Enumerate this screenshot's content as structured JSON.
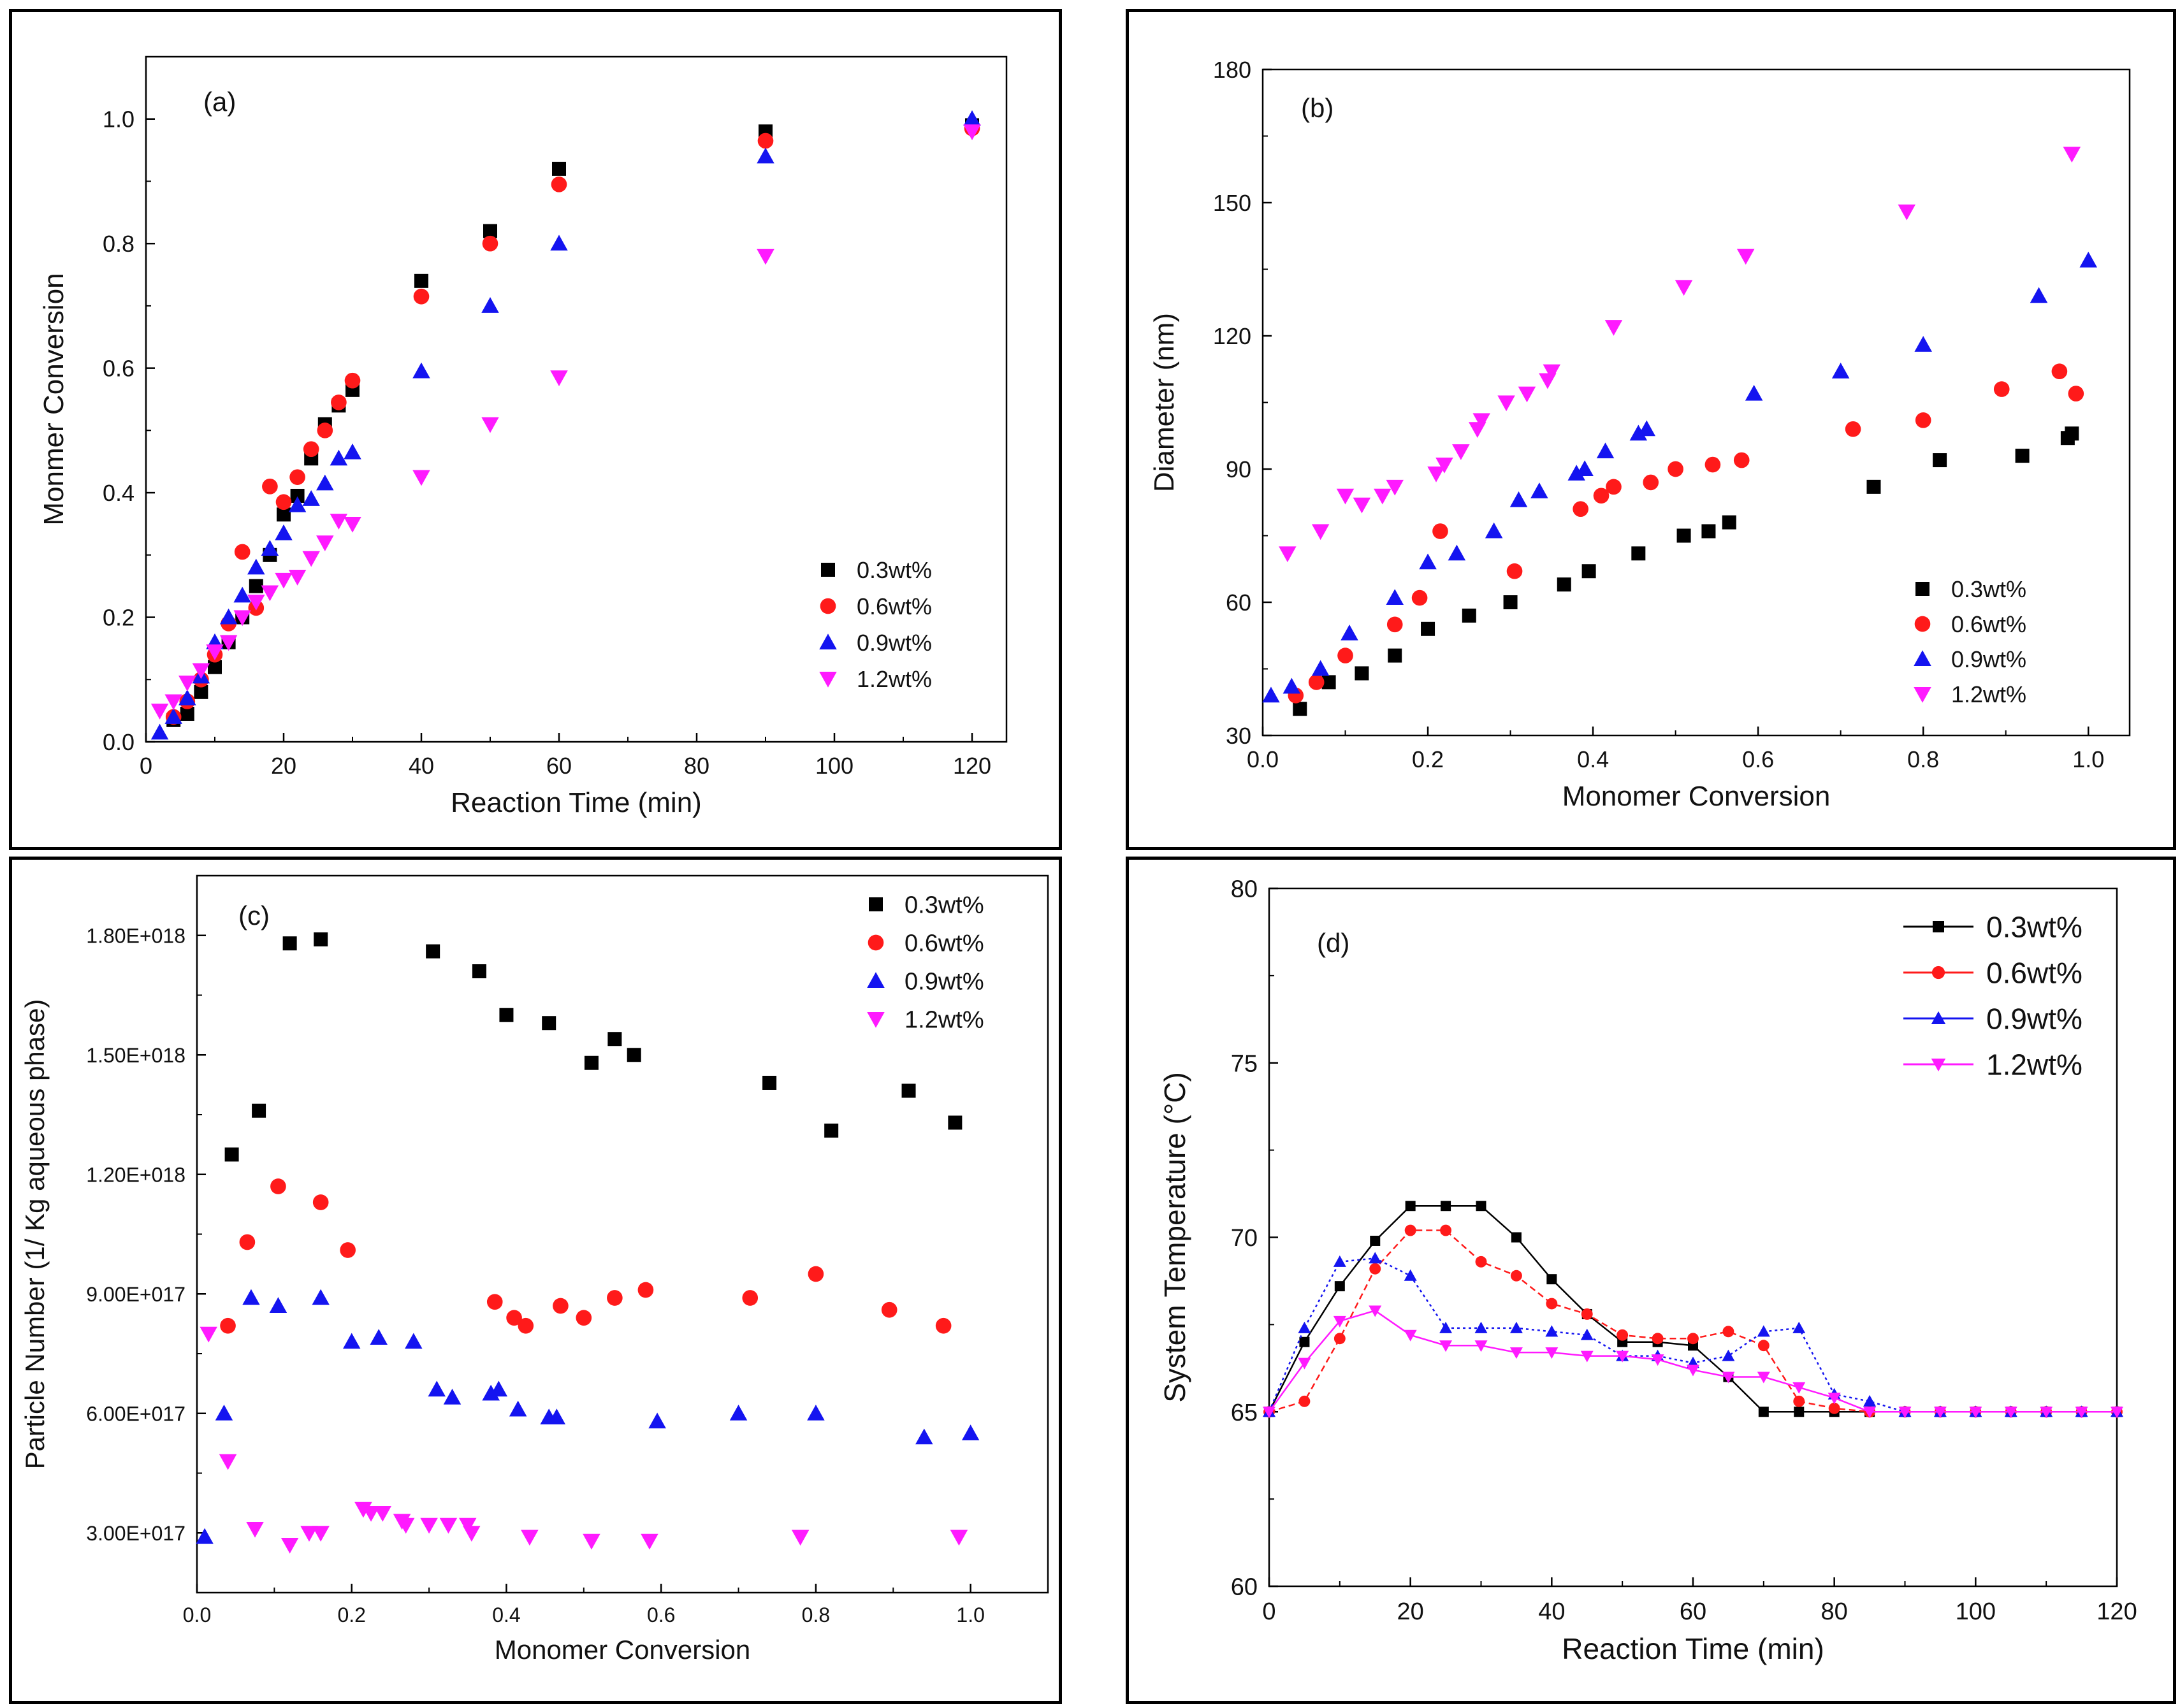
{
  "colors": {
    "s03": "#000000",
    "s06": "#ff1a1a",
    "s09": "#1414f0",
    "s12": "#ff1aff"
  },
  "chart_data": [
    {
      "id": "a",
      "type": "scatter",
      "panel_label": "(a)",
      "xlabel": "Reaction Time (min)",
      "ylabel": "Monmer Conversion",
      "xlim": [
        0,
        125
      ],
      "ylim": [
        0,
        1.1
      ],
      "xticks": [
        0,
        20,
        40,
        60,
        80,
        100,
        120
      ],
      "xtick_labels": [
        "0",
        "20",
        "40",
        "60",
        "80",
        "100",
        "120"
      ],
      "yticks": [
        0.0,
        0.2,
        0.4,
        0.6,
        0.8,
        1.0
      ],
      "ytick_labels": [
        "0.0",
        "0.2",
        "0.4",
        "0.6",
        "0.8",
        "1.0"
      ],
      "legend_position": "bottom-right",
      "series": [
        {
          "name": "0.3wt%",
          "marker": "square",
          "color_key": "s03",
          "x": [
            4,
            6,
            8,
            10,
            12,
            14,
            16,
            18,
            20,
            22,
            24,
            26,
            28,
            30,
            40,
            50,
            60,
            90,
            120
          ],
          "y": [
            0.035,
            0.045,
            0.08,
            0.12,
            0.16,
            0.2,
            0.25,
            0.3,
            0.365,
            0.395,
            0.455,
            0.51,
            0.54,
            0.565,
            0.74,
            0.82,
            0.92,
            0.98,
            0.99
          ]
        },
        {
          "name": "0.6wt%",
          "marker": "circle",
          "color_key": "s06",
          "x": [
            4,
            6,
            8,
            10,
            12,
            14,
            16,
            18,
            20,
            22,
            24,
            26,
            28,
            30,
            40,
            50,
            60,
            90,
            120
          ],
          "y": [
            0.04,
            0.065,
            0.1,
            0.14,
            0.19,
            0.305,
            0.215,
            0.41,
            0.385,
            0.425,
            0.47,
            0.5,
            0.545,
            0.58,
            0.715,
            0.8,
            0.895,
            0.965,
            0.985
          ]
        },
        {
          "name": "0.9wt%",
          "marker": "triangle-up",
          "color_key": "s09",
          "x": [
            2,
            4,
            6,
            8,
            10,
            12,
            14,
            16,
            18,
            20,
            22,
            24,
            26,
            28,
            30,
            40,
            50,
            60,
            90,
            120
          ],
          "y": [
            0.015,
            0.04,
            0.07,
            0.105,
            0.16,
            0.2,
            0.235,
            0.28,
            0.31,
            0.335,
            0.38,
            0.39,
            0.415,
            0.455,
            0.465,
            0.595,
            0.7,
            0.8,
            0.94,
            1.0
          ]
        },
        {
          "name": "1.2wt%",
          "marker": "triangle-down",
          "color_key": "s12",
          "x": [
            2,
            4,
            6,
            8,
            10,
            12,
            14,
            16,
            18,
            20,
            22,
            24,
            26,
            28,
            30,
            40,
            50,
            60,
            90,
            120
          ],
          "y": [
            0.05,
            0.065,
            0.095,
            0.115,
            0.145,
            0.16,
            0.2,
            0.225,
            0.24,
            0.26,
            0.265,
            0.295,
            0.32,
            0.355,
            0.35,
            0.425,
            0.51,
            0.585,
            0.78,
            0.98
          ]
        }
      ]
    },
    {
      "id": "b",
      "type": "scatter",
      "panel_label": "(b)",
      "xlabel": "Monomer Conversion",
      "ylabel": "Diameter (nm)",
      "xlim": [
        0,
        1.05
      ],
      "ylim": [
        30,
        180
      ],
      "xticks": [
        0.0,
        0.2,
        0.4,
        0.6,
        0.8,
        1.0
      ],
      "xtick_labels": [
        "0.0",
        "0.2",
        "0.4",
        "0.6",
        "0.8",
        "1.0"
      ],
      "yticks": [
        30,
        60,
        90,
        120,
        150,
        180
      ],
      "ytick_labels": [
        "30",
        "60",
        "90",
        "120",
        "150",
        "180"
      ],
      "legend_position": "bottom-right",
      "series": [
        {
          "name": "0.3wt%",
          "marker": "square",
          "color_key": "s03",
          "x": [
            0.045,
            0.08,
            0.12,
            0.16,
            0.2,
            0.25,
            0.3,
            0.365,
            0.395,
            0.455,
            0.51,
            0.54,
            0.565,
            0.74,
            0.82,
            0.92,
            0.975,
            0.98
          ],
          "y": [
            36,
            42,
            44,
            48,
            54,
            57,
            60,
            64,
            67,
            71,
            75,
            76,
            78,
            86,
            92,
            93,
            97,
            98
          ]
        },
        {
          "name": "0.6wt%",
          "marker": "circle",
          "color_key": "s06",
          "x": [
            0.04,
            0.065,
            0.1,
            0.16,
            0.19,
            0.215,
            0.305,
            0.385,
            0.41,
            0.425,
            0.47,
            0.5,
            0.545,
            0.58,
            0.715,
            0.8,
            0.895,
            0.965,
            0.985
          ],
          "y": [
            39,
            42,
            48,
            55,
            61,
            76,
            67,
            81,
            84,
            86,
            87,
            90,
            91,
            92,
            99,
            101,
            108,
            112,
            107
          ]
        },
        {
          "name": "0.9wt%",
          "marker": "triangle-up",
          "color_key": "s09",
          "x": [
            0.01,
            0.035,
            0.07,
            0.105,
            0.16,
            0.2,
            0.235,
            0.28,
            0.31,
            0.335,
            0.38,
            0.39,
            0.415,
            0.455,
            0.465,
            0.595,
            0.7,
            0.8,
            0.94,
            1.0
          ],
          "y": [
            39,
            41,
            45,
            53,
            61,
            69,
            71,
            76,
            83,
            85,
            89,
            90,
            94,
            98,
            99,
            107,
            112,
            118,
            129,
            137
          ]
        },
        {
          "name": "1.2wt%",
          "marker": "triangle-down",
          "color_key": "s12",
          "x": [
            0.03,
            0.07,
            0.1,
            0.12,
            0.145,
            0.16,
            0.21,
            0.22,
            0.24,
            0.26,
            0.265,
            0.295,
            0.32,
            0.345,
            0.35,
            0.425,
            0.51,
            0.585,
            0.78,
            0.98
          ],
          "y": [
            71,
            76,
            84,
            82,
            84,
            86,
            89,
            91,
            94,
            99,
            101,
            105,
            107,
            110,
            112,
            122,
            131,
            138,
            148,
            161
          ]
        }
      ]
    },
    {
      "id": "c",
      "type": "scatter",
      "panel_label": "(c)",
      "xlabel": "Monomer Conversion",
      "ylabel": "Particle Number (1/ Kg aqueous phase)",
      "xlim": [
        0,
        1.1
      ],
      "ylim": [
        1.5e+17,
        1.95e+18
      ],
      "xticks": [
        0.0,
        0.2,
        0.4,
        0.6,
        0.8,
        1.0
      ],
      "xtick_labels": [
        "0.0",
        "0.2",
        "0.4",
        "0.6",
        "0.8",
        "1.0"
      ],
      "yticks": [
        3e+17,
        6e+17,
        9e+17,
        1.2e+18,
        1.5e+18,
        1.8e+18
      ],
      "ytick_labels": [
        "3.00E+017",
        "6.00E+017",
        "9.00E+017",
        "1.20E+018",
        "1.50E+018",
        "1.80E+018"
      ],
      "legend_position": "top-right",
      "series": [
        {
          "name": "0.3wt%",
          "marker": "square",
          "color_key": "s03",
          "x": [
            0.045,
            0.08,
            0.12,
            0.16,
            0.305,
            0.365,
            0.4,
            0.455,
            0.51,
            0.54,
            0.565,
            0.74,
            0.82,
            0.92,
            0.98
          ],
          "y": [
            1.25e+18,
            1.36e+18,
            1.78e+18,
            1.79e+18,
            1.76e+18,
            1.71e+18,
            1.6e+18,
            1.58e+18,
            1.48e+18,
            1.54e+18,
            1.5e+18,
            1.43e+18,
            1.31e+18,
            1.41e+18,
            1.33e+18
          ]
        },
        {
          "name": "0.6wt%",
          "marker": "circle",
          "color_key": "s06",
          "x": [
            0.04,
            0.065,
            0.105,
            0.16,
            0.195,
            0.385,
            0.41,
            0.425,
            0.47,
            0.5,
            0.54,
            0.58,
            0.715,
            0.8,
            0.895,
            0.965
          ],
          "y": [
            8.2e+17,
            1.03e+18,
            1.17e+18,
            1.13e+18,
            1.01e+18,
            8.8e+17,
            8.4e+17,
            8.2e+17,
            8.7e+17,
            8.4e+17,
            8.9e+17,
            9.1e+17,
            8.9e+17,
            9.5e+17,
            8.6e+17,
            8.2e+17
          ]
        },
        {
          "name": "0.9wt%",
          "marker": "triangle-up",
          "color_key": "s09",
          "x": [
            0.01,
            0.035,
            0.07,
            0.105,
            0.16,
            0.2,
            0.235,
            0.28,
            0.31,
            0.33,
            0.38,
            0.39,
            0.415,
            0.455,
            0.465,
            0.595,
            0.7,
            0.8,
            0.94,
            1.0
          ],
          "y": [
            2.9e+17,
            6e+17,
            8.9e+17,
            8.7e+17,
            8.9e+17,
            7.8e+17,
            7.9e+17,
            7.8e+17,
            6.6e+17,
            6.4e+17,
            6.5e+17,
            6.6e+17,
            6.1e+17,
            5.9e+17,
            5.9e+17,
            5.8e+17,
            6e+17,
            6e+17,
            5.4e+17,
            5.5e+17
          ]
        },
        {
          "name": "1.2wt%",
          "marker": "triangle-down",
          "color_key": "s12",
          "x": [
            0.015,
            0.04,
            0.075,
            0.12,
            0.145,
            0.16,
            0.215,
            0.225,
            0.24,
            0.265,
            0.27,
            0.3,
            0.325,
            0.35,
            0.355,
            0.43,
            0.51,
            0.585,
            0.78,
            0.985
          ],
          "y": [
            8e+17,
            4.8e+17,
            3.1e+17,
            2.7e+17,
            3e+17,
            3e+17,
            3.6e+17,
            3.5e+17,
            3.5e+17,
            3.3e+17,
            3.2e+17,
            3.2e+17,
            3.2e+17,
            3.2e+17,
            3e+17,
            2.9e+17,
            2.8e+17,
            2.8e+17,
            2.9e+17,
            2.9e+17
          ]
        }
      ]
    },
    {
      "id": "d",
      "type": "line",
      "panel_label": "(d)",
      "xlabel": "Reaction Time (min)",
      "ylabel": "System Temperature (°C)",
      "xlim": [
        0,
        120
      ],
      "ylim": [
        60,
        80
      ],
      "xticks": [
        0,
        20,
        40,
        60,
        80,
        100,
        120
      ],
      "xtick_labels": [
        "0",
        "20",
        "40",
        "60",
        "80",
        "100",
        "120"
      ],
      "yticks": [
        60,
        65,
        70,
        75,
        80
      ],
      "ytick_labels": [
        "60",
        "65",
        "70",
        "75",
        "80"
      ],
      "legend_position": "top-right",
      "x": [
        0,
        5,
        10,
        15,
        20,
        25,
        30,
        35,
        40,
        45,
        50,
        55,
        60,
        65,
        70,
        75,
        80,
        85,
        90,
        95,
        100,
        105,
        110,
        115,
        120
      ],
      "series": [
        {
          "name": "0.3wt%",
          "marker": "square",
          "color_key": "s03",
          "dash": "solid",
          "y": [
            65,
            67.0,
            68.6,
            69.9,
            70.9,
            70.9,
            70.9,
            70.0,
            68.8,
            67.8,
            67.0,
            67.0,
            66.9,
            66.0,
            65.0,
            65.0,
            65.0,
            65.0,
            65.0,
            65.0,
            65.0,
            65.0,
            65.0,
            65.0,
            65.0
          ]
        },
        {
          "name": "0.6wt%",
          "marker": "circle",
          "color_key": "s06",
          "dash": "dashed",
          "y": [
            65,
            65.3,
            67.1,
            69.1,
            70.2,
            70.2,
            69.3,
            68.9,
            68.1,
            67.8,
            67.2,
            67.1,
            67.1,
            67.3,
            66.9,
            65.3,
            65.1,
            65.0,
            65.0,
            65.0,
            65.0,
            65.0,
            65.0,
            65.0,
            65.0
          ]
        },
        {
          "name": "0.9wt%",
          "marker": "triangle-up",
          "color_key": "s09",
          "dash": "dotted",
          "y": [
            65,
            67.4,
            69.3,
            69.4,
            68.9,
            67.4,
            67.4,
            67.4,
            67.3,
            67.2,
            66.6,
            66.6,
            66.4,
            66.6,
            67.3,
            67.4,
            65.5,
            65.3,
            65.0,
            65.0,
            65.0,
            65.0,
            65.0,
            65.0,
            65.0
          ]
        },
        {
          "name": "1.2wt%",
          "marker": "triangle-down",
          "color_key": "s12",
          "dash": "solid",
          "y": [
            65,
            66.4,
            67.6,
            67.9,
            67.2,
            66.9,
            66.9,
            66.7,
            66.7,
            66.6,
            66.6,
            66.5,
            66.2,
            66.0,
            66.0,
            65.7,
            65.4,
            65.0,
            65.0,
            65.0,
            65.0,
            65.0,
            65.0,
            65.0,
            65.0
          ]
        }
      ]
    }
  ]
}
